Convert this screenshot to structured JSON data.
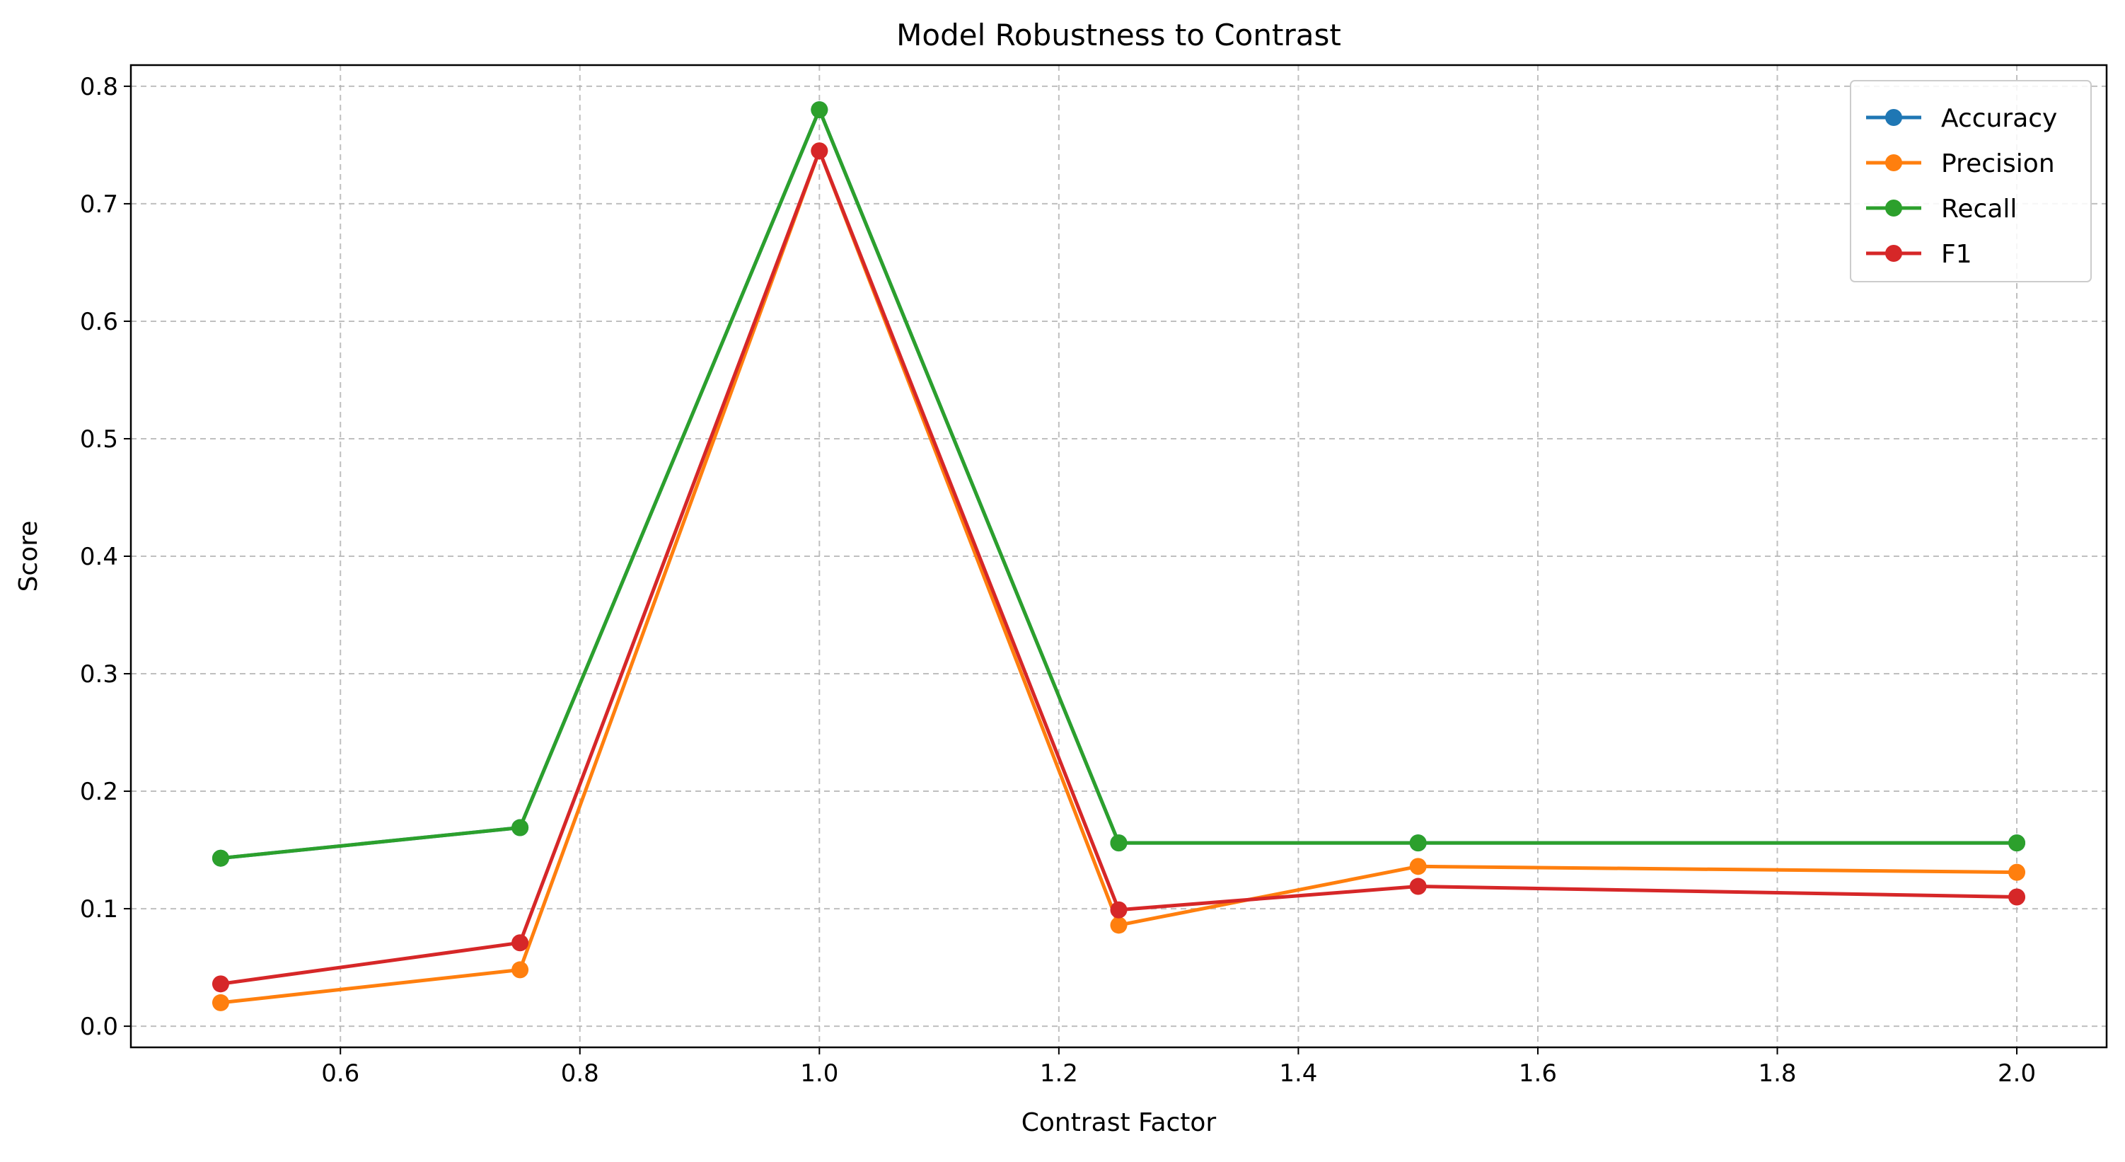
{
  "chart_data": {
    "type": "line",
    "title": "Model Robustness to Contrast",
    "xlabel": "Contrast Factor",
    "ylabel": "Score",
    "xlim": [
      0.425,
      2.075
    ],
    "ylim": [
      -0.018,
      0.818
    ],
    "xticks": [
      0.6,
      0.8,
      1.0,
      1.2,
      1.4,
      1.6,
      1.8,
      2.0
    ],
    "xtick_labels": [
      "0.6",
      "0.8",
      "1.0",
      "1.2",
      "1.4",
      "1.6",
      "1.8",
      "2.0"
    ],
    "yticks": [
      0.0,
      0.1,
      0.2,
      0.3,
      0.4,
      0.5,
      0.6,
      0.7,
      0.8
    ],
    "ytick_labels": [
      "0.0",
      "0.1",
      "0.2",
      "0.3",
      "0.4",
      "0.5",
      "0.6",
      "0.7",
      "0.8"
    ],
    "grid": true,
    "legend_position": "top-right",
    "x": [
      0.5,
      0.75,
      1.0,
      1.25,
      1.5,
      2.0
    ],
    "series": [
      {
        "name": "Accuracy",
        "color": "#1f77b4",
        "values": [
          0.143,
          0.169,
          0.78,
          0.156,
          0.156,
          0.156
        ]
      },
      {
        "name": "Precision",
        "color": "#ff7f0e",
        "values": [
          0.02,
          0.048,
          0.745,
          0.086,
          0.136,
          0.131
        ]
      },
      {
        "name": "Recall",
        "color": "#2ca02c",
        "values": [
          0.143,
          0.169,
          0.78,
          0.156,
          0.156,
          0.156
        ]
      },
      {
        "name": "F1",
        "color": "#d62728",
        "values": [
          0.036,
          0.071,
          0.745,
          0.099,
          0.119,
          0.11
        ]
      }
    ]
  }
}
